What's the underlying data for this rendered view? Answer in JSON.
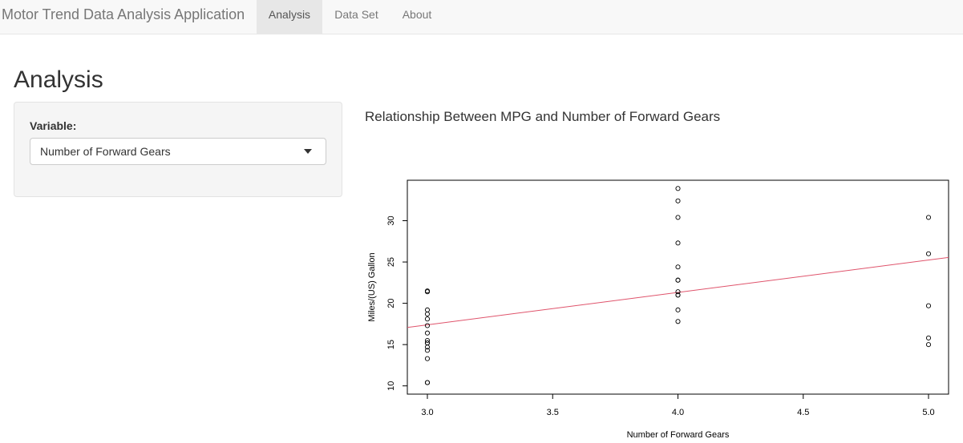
{
  "navbar": {
    "brand": "Motor Trend Data Analysis Application",
    "tabs": [
      {
        "label": "Analysis",
        "active": true
      },
      {
        "label": "Data Set",
        "active": false
      },
      {
        "label": "About",
        "active": false
      }
    ]
  },
  "main": {
    "title": "Analysis"
  },
  "sidebar": {
    "variable_label": "Variable:",
    "selected_variable": "Number of Forward Gears"
  },
  "colors": {
    "regression_line": "#df536b",
    "points": "#000000"
  },
  "chart_data": {
    "type": "scatter",
    "title": "Relationship Between MPG and Number of Forward Gears",
    "xlabel": "Number of Forward Gears",
    "ylabel": "Miles/(US) Gallon",
    "xlim": [
      2.92,
      5.08
    ],
    "ylim": [
      9.0,
      34.9
    ],
    "xticks": [
      "3.0",
      "3.5",
      "4.0",
      "4.5",
      "5.0"
    ],
    "yticks": [
      "10",
      "15",
      "20",
      "25",
      "30"
    ],
    "grid": false,
    "legend": "none",
    "points": [
      {
        "x": 3,
        "y": 21.4
      },
      {
        "x": 3,
        "y": 18.7
      },
      {
        "x": 3,
        "y": 18.1
      },
      {
        "x": 3,
        "y": 14.3
      },
      {
        "x": 3,
        "y": 16.4
      },
      {
        "x": 3,
        "y": 17.3
      },
      {
        "x": 3,
        "y": 15.2
      },
      {
        "x": 3,
        "y": 10.4
      },
      {
        "x": 3,
        "y": 10.4
      },
      {
        "x": 3,
        "y": 14.7
      },
      {
        "x": 3,
        "y": 21.5
      },
      {
        "x": 3,
        "y": 15.5
      },
      {
        "x": 3,
        "y": 15.2
      },
      {
        "x": 3,
        "y": 13.3
      },
      {
        "x": 3,
        "y": 19.2
      },
      {
        "x": 4,
        "y": 21.0
      },
      {
        "x": 4,
        "y": 21.0
      },
      {
        "x": 4,
        "y": 22.8
      },
      {
        "x": 4,
        "y": 24.4
      },
      {
        "x": 4,
        "y": 22.8
      },
      {
        "x": 4,
        "y": 19.2
      },
      {
        "x": 4,
        "y": 17.8
      },
      {
        "x": 4,
        "y": 32.4
      },
      {
        "x": 4,
        "y": 30.4
      },
      {
        "x": 4,
        "y": 33.9
      },
      {
        "x": 4,
        "y": 27.3
      },
      {
        "x": 4,
        "y": 21.4
      },
      {
        "x": 5,
        "y": 26.0
      },
      {
        "x": 5,
        "y": 30.4
      },
      {
        "x": 5,
        "y": 15.8
      },
      {
        "x": 5,
        "y": 19.7
      },
      {
        "x": 5,
        "y": 15.0
      }
    ],
    "regression": {
      "intercept": 5.623,
      "slope": 3.923
    }
  }
}
